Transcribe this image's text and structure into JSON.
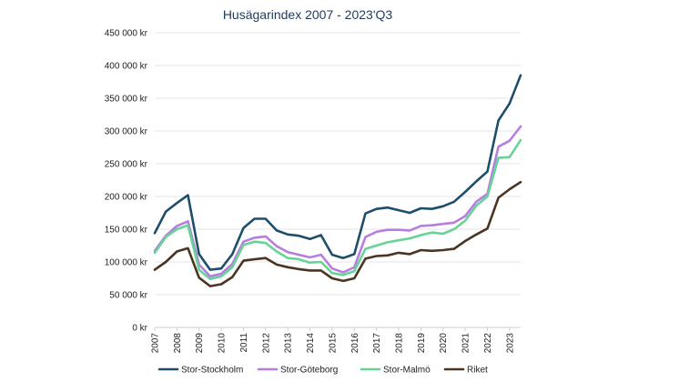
{
  "chart_data": {
    "type": "line",
    "title": "Husägarindex 2007 - 2023'Q3",
    "xlabel": "",
    "ylabel": "",
    "ylim": [
      0,
      450000
    ],
    "yticks": [
      0,
      50000,
      100000,
      150000,
      200000,
      250000,
      300000,
      350000,
      400000,
      450000
    ],
    "ytick_labels": [
      "0 kr",
      "50 000 kr",
      "100 000 kr",
      "150 000 kr",
      "200 000 kr",
      "250 000 kr",
      "300 000 kr",
      "350 000 kr",
      "400 000 kr",
      "450 000 kr"
    ],
    "xticks": [
      "2007",
      "2008",
      "2009",
      "2010",
      "2011",
      "2012",
      "2013",
      "2014",
      "2015",
      "2016",
      "2017",
      "2018",
      "2019",
      "2020",
      "2021",
      "2022",
      "2023"
    ],
    "x": [
      2007.0,
      2007.5,
      2008.0,
      2008.5,
      2009.0,
      2009.5,
      2010.0,
      2010.5,
      2011.0,
      2011.5,
      2012.0,
      2012.5,
      2013.0,
      2013.5,
      2014.0,
      2014.5,
      2015.0,
      2015.5,
      2016.0,
      2016.5,
      2017.0,
      2017.5,
      2018.0,
      2018.5,
      2019.0,
      2019.5,
      2020.0,
      2020.5,
      2021.0,
      2021.5,
      2022.0,
      2022.5,
      2023.0,
      2023.5
    ],
    "series": [
      {
        "name": "Stor-Stockholm",
        "color": "#1f4e6b",
        "values": [
          144000,
          177000,
          190000,
          202000,
          112000,
          88000,
          90000,
          112000,
          152000,
          166000,
          166000,
          148000,
          142000,
          140000,
          135000,
          141000,
          111000,
          106000,
          112000,
          174000,
          181000,
          183000,
          179000,
          175000,
          182000,
          181000,
          185000,
          192000,
          207000,
          223000,
          238000,
          316000,
          342000,
          385000
        ]
      },
      {
        "name": "Stor-Göteborg",
        "color": "#b77ee0",
        "values": [
          117000,
          140000,
          155000,
          162000,
          96000,
          78000,
          82000,
          97000,
          131000,
          137000,
          139000,
          124000,
          115000,
          111000,
          107000,
          111000,
          90000,
          84000,
          92000,
          138000,
          146000,
          149000,
          149000,
          148000,
          155000,
          156000,
          158000,
          160000,
          170000,
          192000,
          204000,
          276000,
          285000,
          307000
        ]
      },
      {
        "name": "Stor-Malmö",
        "color": "#66d496",
        "values": [
          114000,
          138000,
          150000,
          156000,
          88000,
          74000,
          78000,
          92000,
          126000,
          131000,
          129000,
          116000,
          106000,
          104000,
          99000,
          100000,
          83000,
          80000,
          86000,
          120000,
          125000,
          130000,
          133000,
          136000,
          141000,
          145000,
          143000,
          150000,
          163000,
          186000,
          200000,
          259000,
          260000,
          286000
        ]
      },
      {
        "name": "Riket",
        "color": "#4a3524",
        "values": [
          88000,
          100000,
          116000,
          121000,
          76000,
          63000,
          66000,
          77000,
          102000,
          104000,
          106000,
          96000,
          92000,
          89000,
          87000,
          87000,
          75000,
          71000,
          75000,
          105000,
          109000,
          110000,
          114000,
          112000,
          118000,
          117000,
          118000,
          120000,
          132000,
          142000,
          151000,
          198000,
          211000,
          222000
        ]
      }
    ],
    "legend_position": "bottom"
  }
}
